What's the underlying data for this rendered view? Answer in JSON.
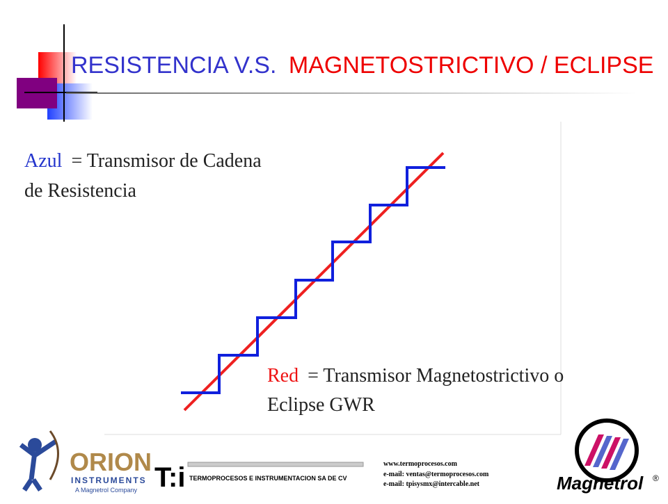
{
  "title": {
    "part1": "RESISTENCIA V.S.",
    "part2": "MAGNETOSTRICTIVO / ECLIPSE"
  },
  "legend_blue": {
    "key": "Azul",
    "lines": [
      "= Transmisor de Cadena",
      "de Resistencia"
    ]
  },
  "legend_red": {
    "key": "Red",
    "lines": [
      "= Transmisor Magnetostrictivo o",
      "Eclipse GWR"
    ]
  },
  "footer": {
    "orion": {
      "name": "ORION",
      "sub": "INSTRUMENTS",
      "tagline": "A Magnetrol Company"
    },
    "tpi": {
      "logo": "T:i",
      "company": "TERMOPROCESOS E INSTRUMENTACION SA DE CV"
    },
    "contacts": [
      "www.termoprocesos.com",
      "e-mail: ventas@termoprocesos.com",
      "e-mail: tpisysmx@intercable.net"
    ],
    "magnetrol": {
      "name": "Magnetrol",
      "mark": "®"
    }
  }
}
